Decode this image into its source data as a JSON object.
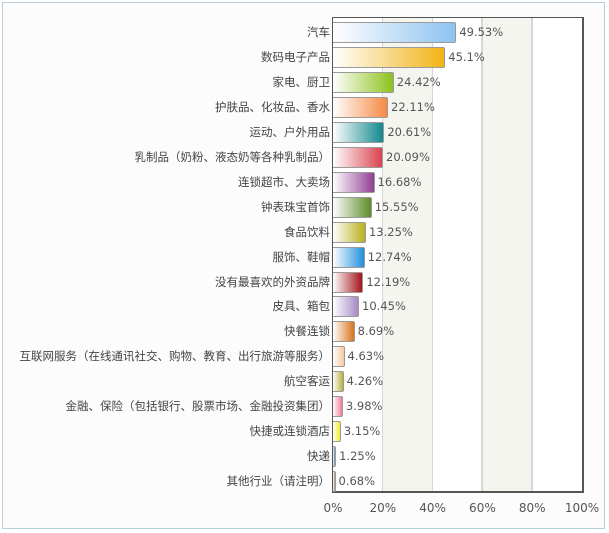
{
  "chart_data": {
    "type": "bar",
    "orientation": "horizontal",
    "title": "",
    "xlabel": "",
    "ylabel": "",
    "xlim": [
      0,
      100
    ],
    "x_ticks": [
      "0%",
      "20%",
      "40%",
      "60%",
      "80%",
      "100%"
    ],
    "grid": true,
    "legend": null,
    "categories": [
      "汽车",
      "数码电子产品",
      "家电、厨卫",
      "护肤品、化妆品、香水",
      "运动、户外用品",
      "乳制品（奶粉、液态奶等各种乳制品）",
      "连锁超市、大卖场",
      "钟表珠宝首饰",
      "食品饮料",
      "服饰、鞋帽",
      "没有最喜欢的外资品牌",
      "皮具、箱包",
      "快餐连锁",
      "互联网服务（在线通讯社交、购物、教育、出行旅游等服务）",
      "航空客运",
      "金融、保险（包括银行、股票市场、金融投资集团）",
      "快捷或连锁酒店",
      "快递",
      "其他行业（请注明）"
    ],
    "values": [
      49.53,
      45.1,
      24.42,
      22.11,
      20.61,
      20.09,
      16.68,
      15.55,
      13.25,
      12.74,
      12.19,
      10.45,
      8.69,
      4.63,
      4.26,
      3.98,
      3.15,
      1.25,
      0.68
    ],
    "value_labels": [
      "49.53%",
      "45.1%",
      "24.42%",
      "22.11%",
      "20.61%",
      "20.09%",
      "16.68%",
      "15.55%",
      "13.25%",
      "12.74%",
      "12.19%",
      "10.45%",
      "8.69%",
      "4.63%",
      "4.26%",
      "3.98%",
      "3.15%",
      "1.25%",
      "0.68%"
    ],
    "bar_colors": [
      "#8ec3f0",
      "#f2b316",
      "#8cc21c",
      "#f58a44",
      "#12898e",
      "#d9434f",
      "#8f3f95",
      "#5e8c2a",
      "#b8b01c",
      "#1f8fdc",
      "#a3141c",
      "#a68ac4",
      "#d8741c",
      "#f6c8a2",
      "#b5b040",
      "#f27d9a",
      "#f2ea2a",
      "#5a7fae",
      "#a08a78"
    ]
  }
}
